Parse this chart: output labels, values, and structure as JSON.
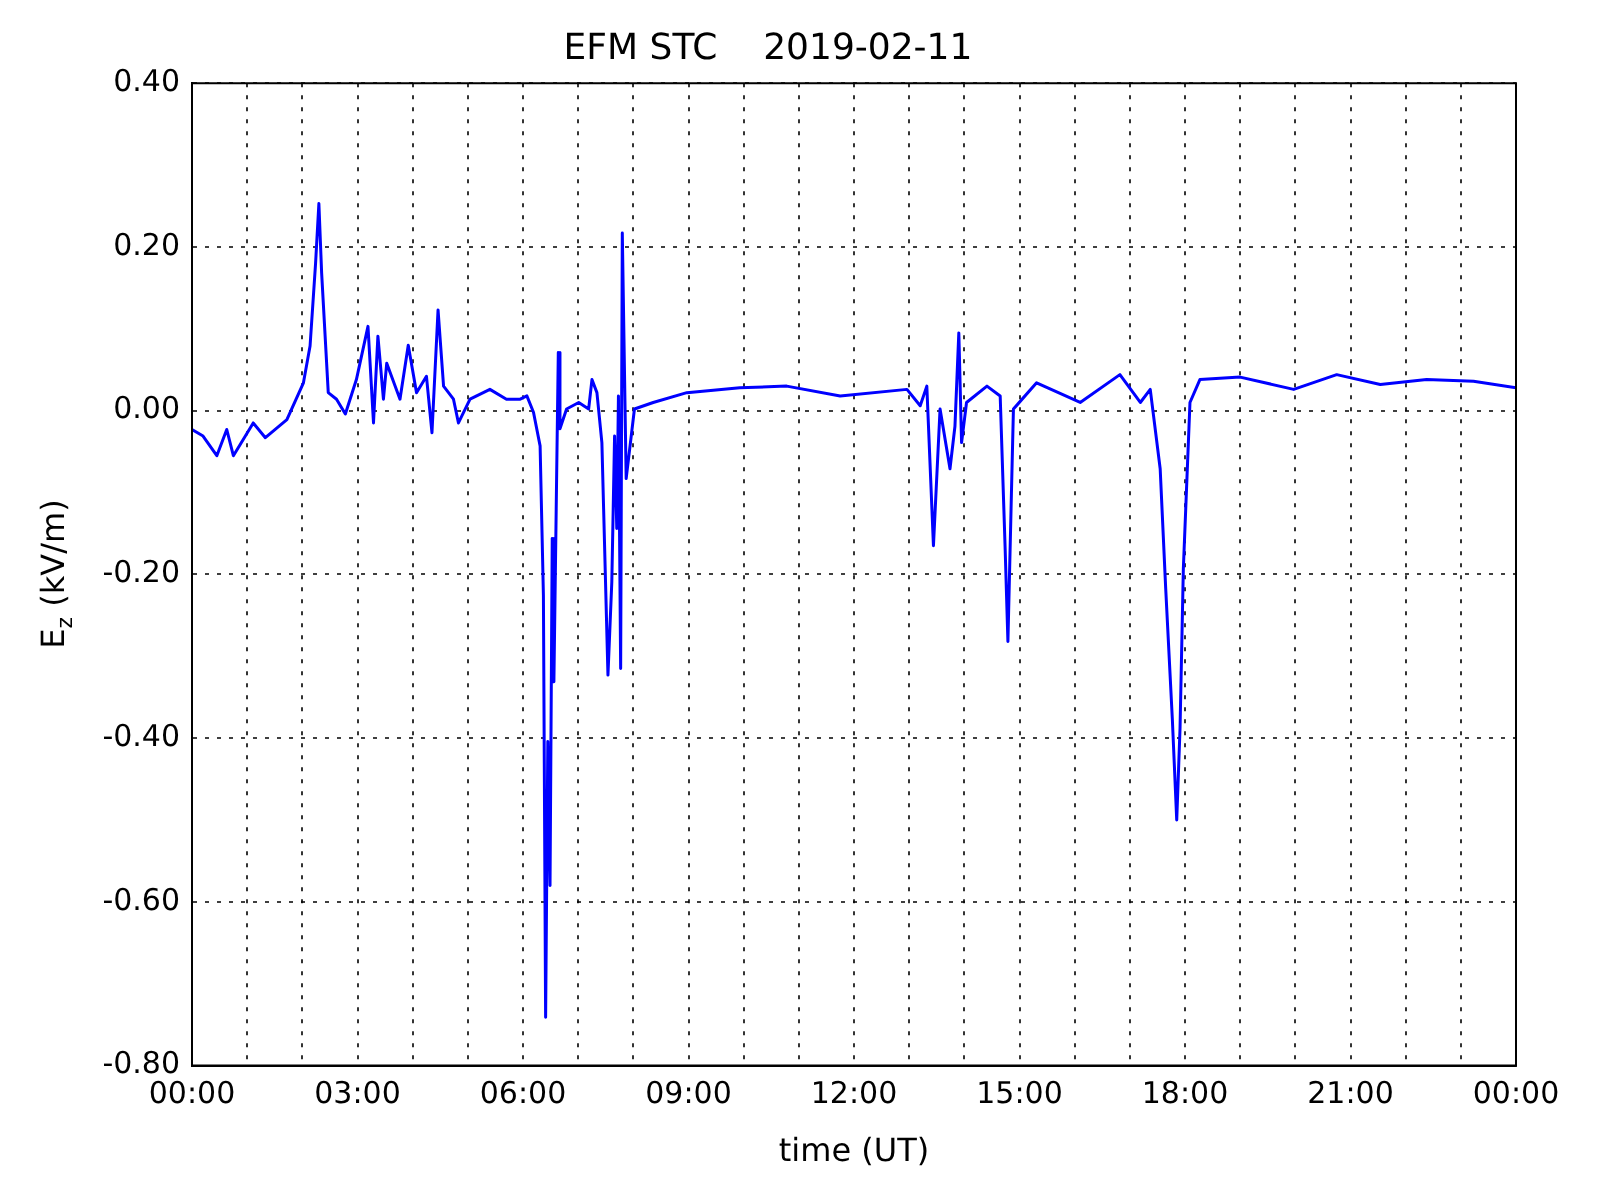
{
  "chart_data": {
    "type": "line",
    "title": "EFM STC    2019-02-11",
    "xlabel": "time (UT)",
    "ylabel": "E$_{z}$ (kV/m)",
    "x": [
      0,
      0.2,
      0.45,
      0.63,
      0.75,
      1.11,
      1.33,
      1.72,
      2.02,
      2.14,
      2.24,
      2.3,
      2.35,
      2.47,
      2.62,
      2.78,
      2.98,
      3.19,
      3.29,
      3.37,
      3.47,
      3.53,
      3.77,
      3.92,
      4.07,
      4.25,
      4.35,
      4.46,
      4.56,
      4.74,
      4.83,
      5.04,
      5.4,
      5.7,
      5.95,
      6.07,
      6.19,
      6.31,
      6.37,
      6.41,
      6.45,
      6.49,
      6.53,
      6.56,
      6.64,
      6.67,
      6.79,
      7.01,
      7.19,
      7.25,
      7.34,
      7.43,
      7.54,
      7.61,
      7.66,
      7.7,
      7.73,
      7.77,
      7.8,
      7.87,
      8.02,
      8.36,
      8.97,
      9.93,
      10.78,
      11.75,
      12.96,
      13.2,
      13.32,
      13.44,
      13.56,
      13.74,
      13.83,
      13.9,
      13.95,
      14.04,
      14.41,
      14.65,
      14.74,
      14.79,
      14.89,
      15.31,
      16.1,
      16.82,
      17.19,
      17.37,
      17.55,
      17.65,
      17.77,
      17.85,
      17.91,
      17.97,
      18.09,
      18.27,
      19.0,
      19.97,
      20.75,
      21.54,
      22.38,
      23.23,
      24
    ],
    "series": [
      {
        "color": "#0000ff",
        "values": [
          -0.023,
          -0.031,
          -0.055,
          -0.023,
          -0.055,
          -0.015,
          -0.033,
          -0.011,
          0.034,
          0.079,
          0.18,
          0.253,
          0.168,
          0.022,
          0.014,
          -0.004,
          0.038,
          0.103,
          -0.015,
          0.091,
          0.014,
          0.058,
          0.014,
          0.08,
          0.022,
          0.042,
          -0.027,
          0.123,
          0.03,
          0.014,
          -0.015,
          0.014,
          0.026,
          0.014,
          0.014,
          0.018,
          -0.002,
          -0.043,
          -0.226,
          -0.741,
          -0.404,
          -0.58,
          -0.156,
          -0.331,
          0.071,
          -0.022,
          0.002,
          0.01,
          0.002,
          0.038,
          0.022,
          -0.039,
          -0.323,
          -0.209,
          -0.031,
          -0.144,
          0.018,
          -0.315,
          0.217,
          -0.083,
          0.002,
          0.01,
          0.022,
          0.028,
          0.03,
          0.018,
          0.026,
          0.006,
          0.03,
          -0.165,
          0.002,
          -0.071,
          -0.019,
          0.095,
          -0.039,
          0.01,
          0.03,
          0.018,
          -0.169,
          -0.282,
          0.002,
          0.034,
          0.01,
          0.044,
          0.01,
          0.026,
          -0.071,
          -0.217,
          -0.376,
          -0.5,
          -0.388,
          -0.193,
          0.01,
          0.038,
          0.041,
          0.026,
          0.044,
          0.032,
          0.038,
          0.036,
          0.028
        ]
      }
    ],
    "xlim": [
      0,
      24
    ],
    "xticks": [
      {
        "value": 0,
        "label": "00:00"
      },
      {
        "value": 1,
        "label": null
      },
      {
        "value": 2,
        "label": null
      },
      {
        "value": 3,
        "label": "03:00"
      },
      {
        "value": 4,
        "label": null
      },
      {
        "value": 5,
        "label": null
      },
      {
        "value": 6,
        "label": "06:00"
      },
      {
        "value": 7,
        "label": null
      },
      {
        "value": 8,
        "label": null
      },
      {
        "value": 9,
        "label": "09:00"
      },
      {
        "value": 10,
        "label": null
      },
      {
        "value": 11,
        "label": null
      },
      {
        "value": 12,
        "label": "12:00"
      },
      {
        "value": 13,
        "label": null
      },
      {
        "value": 14,
        "label": null
      },
      {
        "value": 15,
        "label": "15:00"
      },
      {
        "value": 16,
        "label": null
      },
      {
        "value": 17,
        "label": null
      },
      {
        "value": 18,
        "label": "18:00"
      },
      {
        "value": 19,
        "label": null
      },
      {
        "value": 20,
        "label": null
      },
      {
        "value": 21,
        "label": "21:00"
      },
      {
        "value": 22,
        "label": null
      },
      {
        "value": 23,
        "label": null
      },
      {
        "value": 24,
        "label": "00:00"
      }
    ],
    "ylim": [
      -0.8,
      0.4
    ],
    "yticks": [
      {
        "value": -0.8,
        "label": "-0.80"
      },
      {
        "value": -0.6,
        "label": "-0.60"
      },
      {
        "value": -0.4,
        "label": "-0.40"
      },
      {
        "value": -0.2,
        "label": "-0.20"
      },
      {
        "value": 0,
        "label": "0.00"
      },
      {
        "value": 0.2,
        "label": "0.20"
      },
      {
        "value": 0.4,
        "label": "0.40"
      }
    ],
    "grid": true,
    "legend": false,
    "marker": "none",
    "line_style": "solid"
  }
}
